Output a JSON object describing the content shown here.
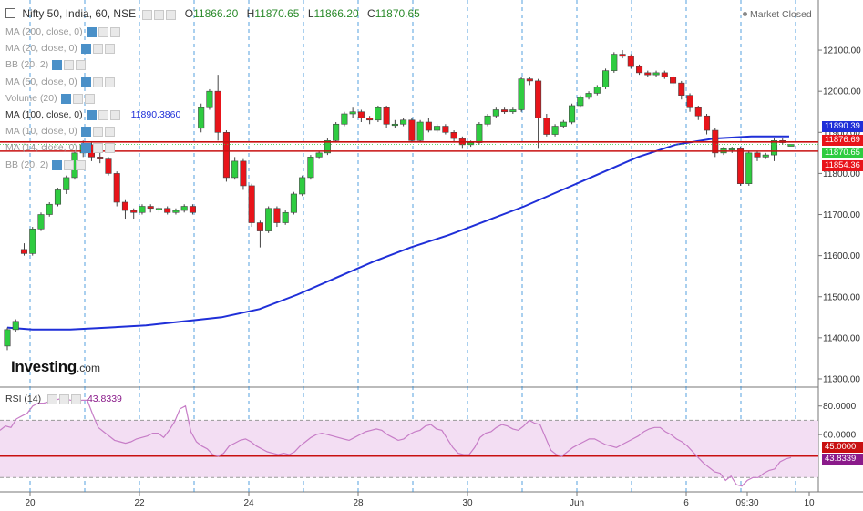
{
  "header": {
    "symbol": "Nifty 50, India, 60, NSE",
    "ohlc": [
      {
        "label": "O",
        "value": "11866.20"
      },
      {
        "label": "H",
        "value": "11870.65"
      },
      {
        "label": "L",
        "value": "11866.20"
      },
      {
        "label": "C",
        "value": "11870.65"
      }
    ],
    "status": "Market Closed"
  },
  "indicators": [
    {
      "label": "MA (200, close, 0)",
      "value": ""
    },
    {
      "label": "MA (20, close, 0)",
      "value": ""
    },
    {
      "label": "BB (20, 2)",
      "value": ""
    },
    {
      "label": "MA (50, close, 0)",
      "value": ""
    },
    {
      "label": "Volume (20)",
      "value": ""
    },
    {
      "label": "MA (100, close, 0)",
      "value": "11890.3860"
    },
    {
      "label": "MA (10, close, 0)",
      "value": ""
    },
    {
      "label": "MA (14, close, 0)",
      "value": ""
    },
    {
      "label": "BB (20, 2)",
      "value": ""
    }
  ],
  "logo": {
    "main": "Investing",
    "suffix": ".com"
  },
  "rsi_label": {
    "label": "RSI (14)",
    "value": "43.8339"
  },
  "colors": {
    "up": "#2ecc40",
    "down": "#e8141a",
    "ma": "#1f2fd8",
    "rsi": "#c77dc7",
    "hline": "#c81010",
    "grid": "#2d8cd8"
  },
  "chart_data": [
    {
      "type": "candlestick",
      "x_ticks": [
        "20",
        "22",
        "24",
        "28",
        "30",
        "Jun",
        "6",
        "09:30",
        "10"
      ],
      "y_ticks": [
        "11300.00",
        "11400.00",
        "11500.00",
        "11600.00",
        "11700.00",
        "11800.00",
        "11900.00",
        "12000.00",
        "12100.00"
      ],
      "ylim": [
        11280,
        12160
      ],
      "candles": [
        [
          11380,
          11420,
          11370,
          11425
        ],
        [
          11420,
          11440,
          11415,
          11445
        ],
        [
          11615,
          11605,
          11600,
          11630
        ],
        [
          11605,
          11665,
          11600,
          11670
        ],
        [
          11665,
          11700,
          11660,
          11705
        ],
        [
          11700,
          11725,
          11695,
          11730
        ],
        [
          11725,
          11760,
          11720,
          11765
        ],
        [
          11760,
          11790,
          11750,
          11795
        ],
        [
          11790,
          11850,
          11785,
          11855
        ],
        [
          11850,
          11870,
          11840,
          11880
        ],
        [
          11870,
          11840,
          11830,
          11875
        ],
        [
          11840,
          11835,
          11825,
          11850
        ],
        [
          11835,
          11800,
          11795,
          11840
        ],
        [
          11800,
          11730,
          11720,
          11805
        ],
        [
          11730,
          11710,
          11690,
          11735
        ],
        [
          11710,
          11705,
          11690,
          11715
        ],
        [
          11705,
          11720,
          11700,
          11725
        ],
        [
          11720,
          11715,
          11705,
          11725
        ],
        [
          11715,
          11715,
          11705,
          11720
        ],
        [
          11715,
          11705,
          11700,
          11720
        ],
        [
          11705,
          11710,
          11700,
          11715
        ],
        [
          11710,
          11720,
          11705,
          11725
        ],
        [
          11720,
          11705,
          11700,
          11725
        ],
        [
          11910,
          11960,
          11900,
          11970
        ],
        [
          11960,
          12000,
          11955,
          12005
        ],
        [
          12000,
          11900,
          11880,
          12040
        ],
        [
          11900,
          11790,
          11780,
          11905
        ],
        [
          11790,
          11830,
          11785,
          11840
        ],
        [
          11830,
          11770,
          11760,
          11835
        ],
        [
          11770,
          11680,
          11670,
          11775
        ],
        [
          11680,
          11660,
          11620,
          11685
        ],
        [
          11660,
          11715,
          11655,
          11720
        ],
        [
          11715,
          11680,
          11670,
          11720
        ],
        [
          11680,
          11705,
          11675,
          11710
        ],
        [
          11705,
          11750,
          11700,
          11755
        ],
        [
          11750,
          11790,
          11745,
          11795
        ],
        [
          11790,
          11840,
          11785,
          11845
        ],
        [
          11840,
          11850,
          11835,
          11855
        ],
        [
          11850,
          11880,
          11845,
          11885
        ],
        [
          11880,
          11920,
          11875,
          11925
        ],
        [
          11920,
          11945,
          11915,
          11950
        ],
        [
          11945,
          11950,
          11935,
          11960
        ],
        [
          11950,
          11935,
          11925,
          11955
        ],
        [
          11935,
          11930,
          11920,
          11940
        ],
        [
          11930,
          11960,
          11925,
          11965
        ],
        [
          11960,
          11920,
          11910,
          11965
        ],
        [
          11920,
          11920,
          11910,
          11930
        ],
        [
          11920,
          11930,
          11915,
          11935
        ],
        [
          11930,
          11880,
          11875,
          11935
        ],
        [
          11880,
          11925,
          11875,
          11930
        ],
        [
          11925,
          11905,
          11900,
          11935
        ],
        [
          11905,
          11915,
          11900,
          11920
        ],
        [
          11915,
          11900,
          11895,
          11920
        ],
        [
          11900,
          11885,
          11875,
          11905
        ],
        [
          11885,
          11870,
          11860,
          11890
        ],
        [
          11870,
          11875,
          11865,
          11880
        ],
        [
          11875,
          11920,
          11870,
          11925
        ],
        [
          11920,
          11940,
          11915,
          11945
        ],
        [
          11940,
          11955,
          11935,
          11960
        ],
        [
          11955,
          11950,
          11945,
          11960
        ],
        [
          11950,
          11955,
          11945,
          11960
        ],
        [
          11955,
          12030,
          11950,
          12035
        ],
        [
          12030,
          12025,
          12015,
          12035
        ],
        [
          12025,
          11935,
          11860,
          12030
        ],
        [
          11935,
          11895,
          11890,
          11945
        ],
        [
          11895,
          11915,
          11890,
          11920
        ],
        [
          11915,
          11925,
          11910,
          11930
        ],
        [
          11925,
          11965,
          11920,
          11970
        ],
        [
          11965,
          11985,
          11960,
          11990
        ],
        [
          11985,
          11995,
          11980,
          12000
        ],
        [
          11995,
          12010,
          11990,
          12015
        ],
        [
          12010,
          12050,
          12005,
          12055
        ],
        [
          12050,
          12090,
          12045,
          12095
        ],
        [
          12090,
          12085,
          12080,
          12100
        ],
        [
          12085,
          12060,
          12055,
          12090
        ],
        [
          12060,
          12045,
          12040,
          12065
        ],
        [
          12045,
          12040,
          12035,
          12050
        ],
        [
          12040,
          12045,
          12035,
          12050
        ],
        [
          12045,
          12035,
          12030,
          12050
        ],
        [
          12035,
          12020,
          12010,
          12040
        ],
        [
          12020,
          11990,
          11980,
          12025
        ],
        [
          11990,
          11960,
          11950,
          11995
        ],
        [
          11960,
          11940,
          11930,
          11965
        ],
        [
          11940,
          11905,
          11895,
          11945
        ],
        [
          11905,
          11850,
          11840,
          11910
        ],
        [
          11850,
          11860,
          11845,
          11865
        ],
        [
          11860,
          11860,
          11850,
          11865
        ],
        [
          11860,
          11775,
          11770,
          11865
        ],
        [
          11775,
          11850,
          11770,
          11855
        ],
        [
          11850,
          11840,
          11830,
          11855
        ],
        [
          11840,
          11845,
          11835,
          11850
        ],
        [
          11845,
          11880,
          11830,
          11885
        ],
        [
          11880,
          11875,
          11870,
          11885
        ],
        [
          11866.2,
          11870.65,
          11866.2,
          11870.65
        ]
      ],
      "ma_100": [
        [
          0,
          11425
        ],
        [
          4,
          11420
        ],
        [
          10,
          11420
        ],
        [
          16,
          11425
        ],
        [
          22,
          11430
        ],
        [
          28,
          11440
        ],
        [
          34,
          11450
        ],
        [
          40,
          11470
        ],
        [
          46,
          11505
        ],
        [
          52,
          11545
        ],
        [
          58,
          11585
        ],
        [
          64,
          11620
        ],
        [
          70,
          11650
        ],
        [
          76,
          11685
        ],
        [
          82,
          11720
        ],
        [
          88,
          11760
        ],
        [
          94,
          11800
        ],
        [
          100,
          11840
        ],
        [
          106,
          11870
        ],
        [
          112,
          11885
        ],
        [
          118,
          11890
        ],
        [
          124,
          11890
        ]
      ],
      "ma_label": "11890.3860",
      "price_tags": [
        {
          "value": 11890.39,
          "label": "11890.39",
          "color": "#1f2fd8"
        },
        {
          "value": 11876.69,
          "label": "11876.69",
          "color": "#e8141a"
        },
        {
          "value": 11870.65,
          "label": "11870.65",
          "color": "#2ecc40"
        },
        {
          "value": 11854.36,
          "label": "11854.36",
          "color": "#e8141a"
        }
      ],
      "hlines": [
        11876.69,
        11854.36
      ]
    },
    {
      "type": "line",
      "name": "RSI (14)",
      "y_ticks": [
        "80.0000",
        "60.0000"
      ],
      "ylim": [
        20,
        90
      ],
      "band": [
        70,
        30
      ],
      "level": 45.0,
      "values": [
        63,
        66,
        65,
        71,
        73,
        75,
        80,
        82,
        82,
        83,
        84,
        85,
        85,
        84,
        83,
        84,
        84,
        74,
        65,
        62,
        59,
        56,
        55,
        54,
        55,
        57,
        58,
        59,
        61,
        61,
        58,
        63,
        69,
        78,
        80,
        62,
        55,
        52,
        50,
        46,
        45,
        47,
        52,
        54,
        56,
        57,
        55,
        52,
        50,
        48,
        47,
        46,
        47,
        46,
        48,
        52,
        55,
        58,
        60,
        61,
        60,
        59,
        58,
        57,
        56,
        58,
        60,
        62,
        63,
        64,
        63,
        60,
        58,
        56,
        57,
        60,
        62,
        63,
        66,
        67,
        64,
        63,
        57,
        51,
        47,
        46,
        46,
        51,
        58,
        61,
        62,
        65,
        67,
        66,
        64,
        63,
        66,
        70,
        68,
        67,
        58,
        49,
        46,
        45,
        48,
        51,
        53,
        55,
        57,
        57,
        55,
        53,
        52,
        51,
        53,
        55,
        57,
        59,
        62,
        64,
        65,
        65,
        62,
        60,
        57,
        55,
        52,
        48,
        44,
        40,
        37,
        34,
        33,
        28,
        31,
        25,
        24,
        28,
        30,
        30,
        33,
        35,
        36,
        41,
        43,
        44
      ],
      "tags": [
        {
          "value": 45.0,
          "label": "45.0000",
          "color": "#c81010"
        },
        {
          "value": 43.8339,
          "label": "43.8339",
          "color": "#8a1a8a"
        }
      ]
    }
  ]
}
